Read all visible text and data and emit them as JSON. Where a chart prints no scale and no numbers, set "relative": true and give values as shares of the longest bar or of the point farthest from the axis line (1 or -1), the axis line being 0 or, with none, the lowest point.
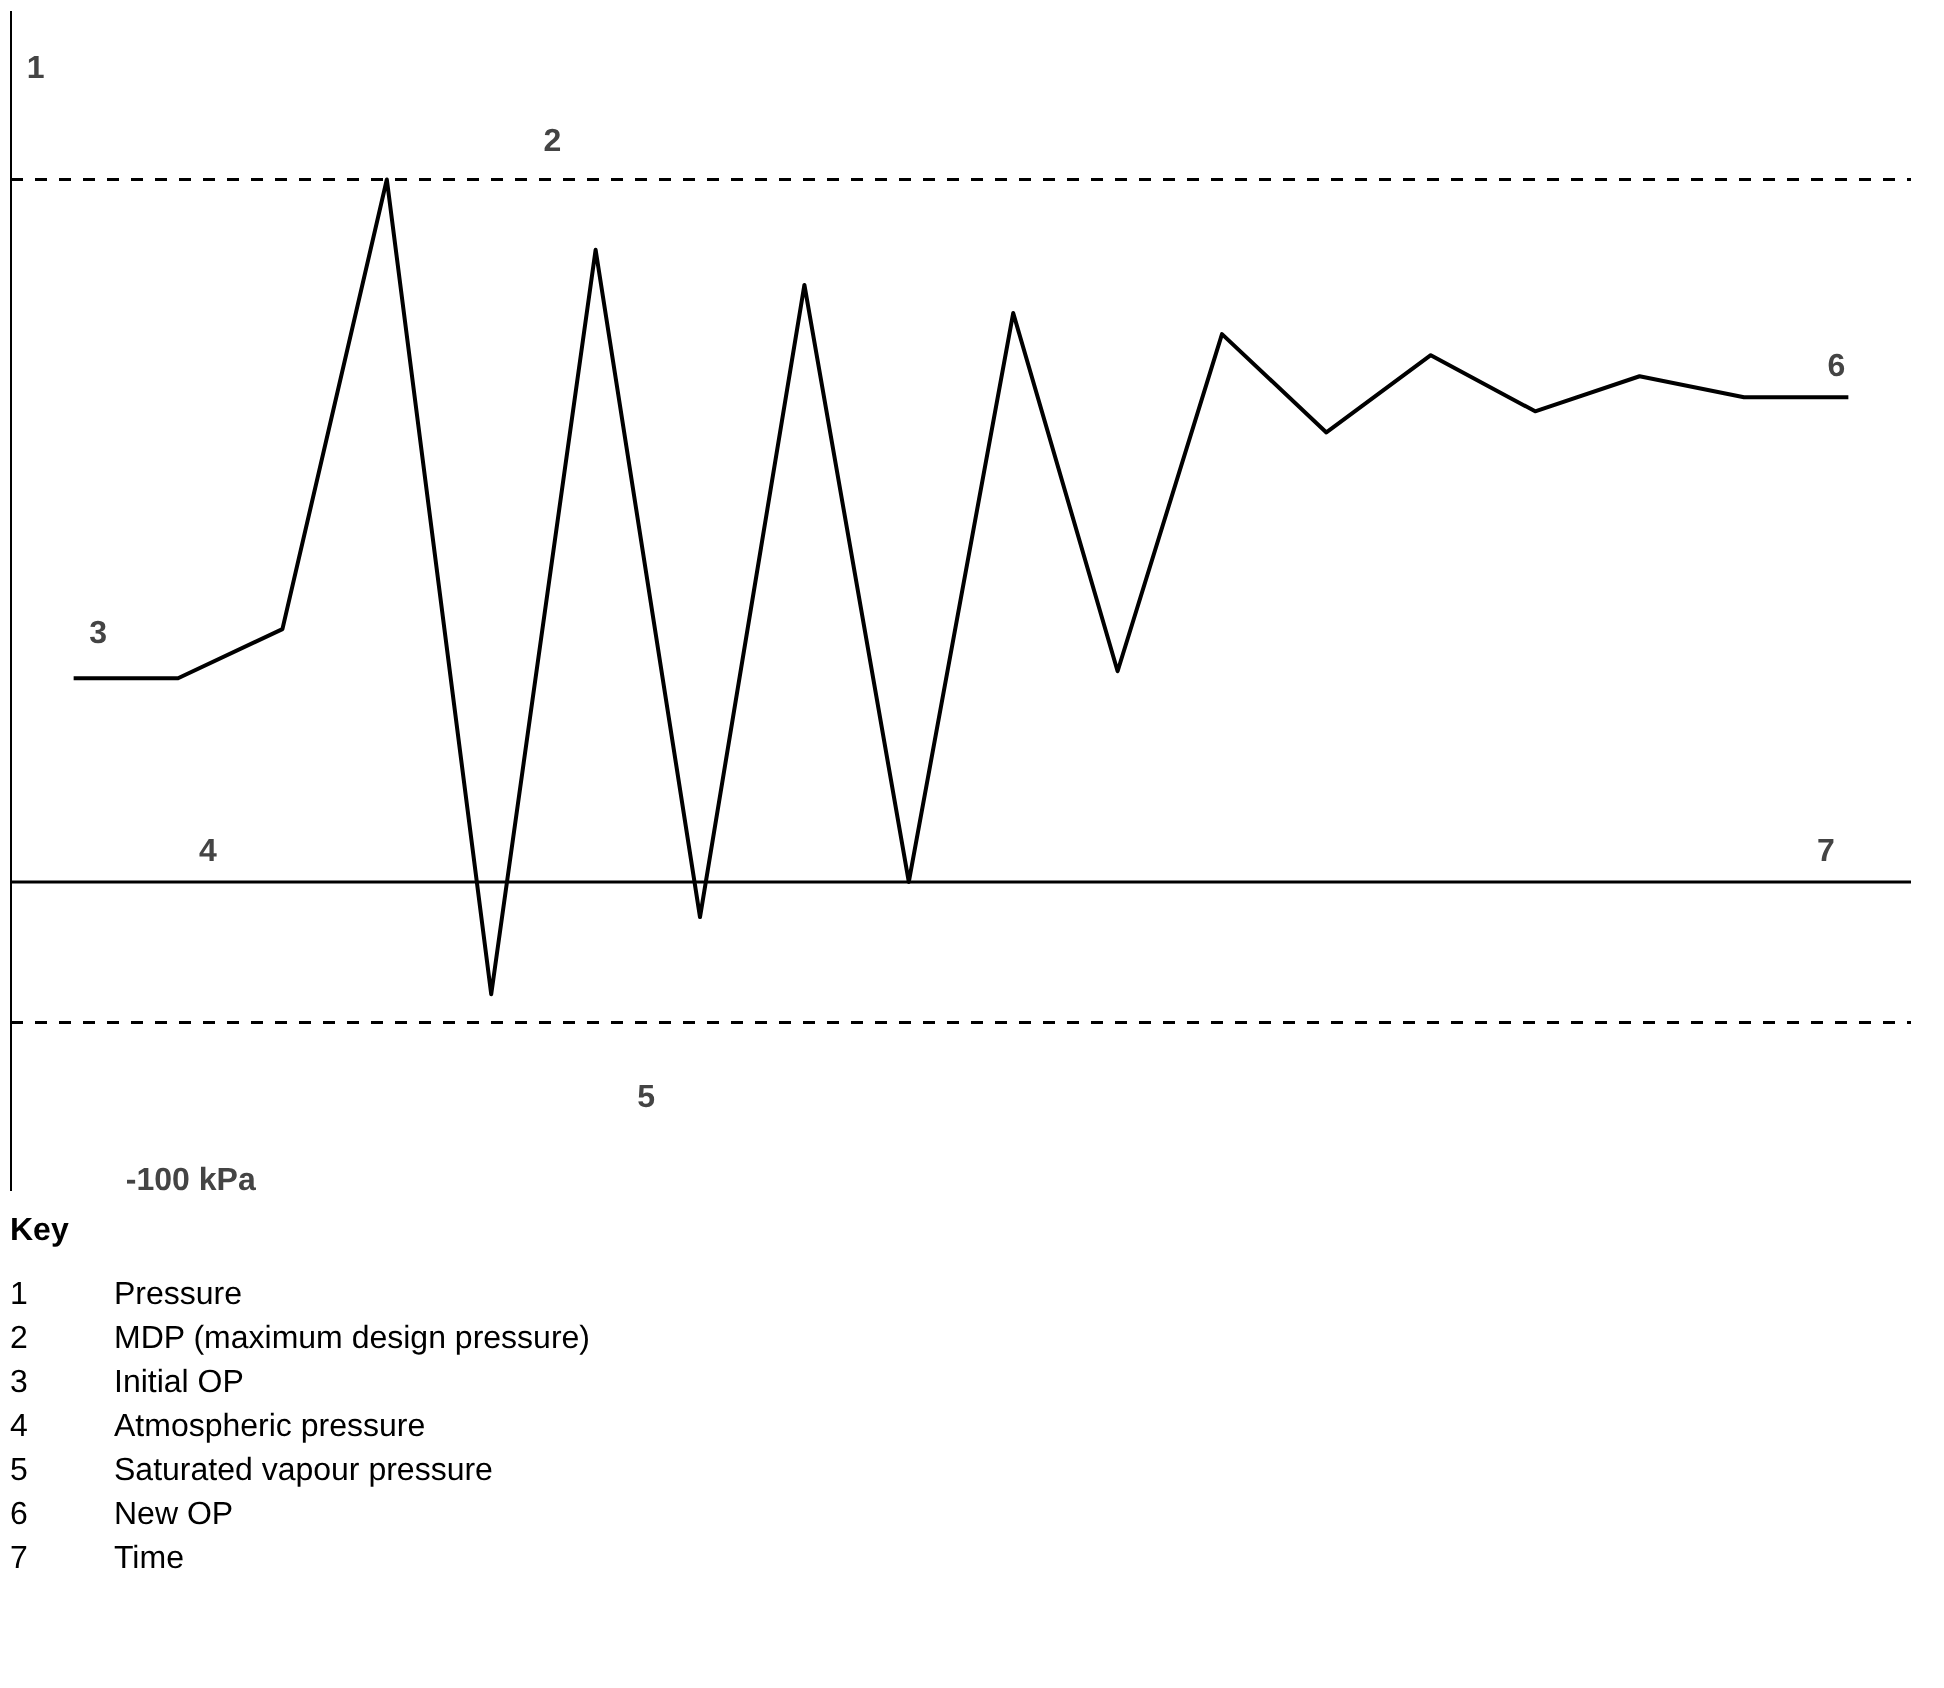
{
  "chart_data": {
    "type": "line",
    "relative": true,
    "color": "#000000",
    "line_style": "solid",
    "marker": "none",
    "categories": [
      null,
      null,
      null,
      null,
      null,
      null,
      null,
      null,
      null,
      null,
      null,
      null,
      null,
      null,
      null,
      null,
      null,
      null
    ],
    "values": [
      0.29,
      0.29,
      0.36,
      1.0,
      -0.16,
      0.9,
      -0.05,
      0.85,
      0.0,
      0.81,
      0.3,
      0.78,
      0.64,
      0.75,
      0.67,
      0.72,
      0.69,
      0.69
    ],
    "ref_lines": [
      {
        "axis": "y",
        "value": 1.0,
        "line_style": "dashed",
        "color": "#000000"
      },
      {
        "axis": "y",
        "value": 0.0,
        "line_style": "solid",
        "color": "#000000"
      },
      {
        "axis": "y",
        "value": -0.2,
        "line_style": "dashed",
        "color": "#000000"
      }
    ],
    "annotations": [
      "1",
      "2",
      "3",
      "4",
      "5",
      "6",
      "7",
      "-100 kPa",
      "Key",
      "1\tPressure",
      "2\tMDP (maximum design pressure)",
      "3\tInitial OP",
      "4\tAtmospheric pressure",
      "5\tSaturated vapour pressure",
      "6\tNew OP",
      "7\tTime"
    ]
  }
}
